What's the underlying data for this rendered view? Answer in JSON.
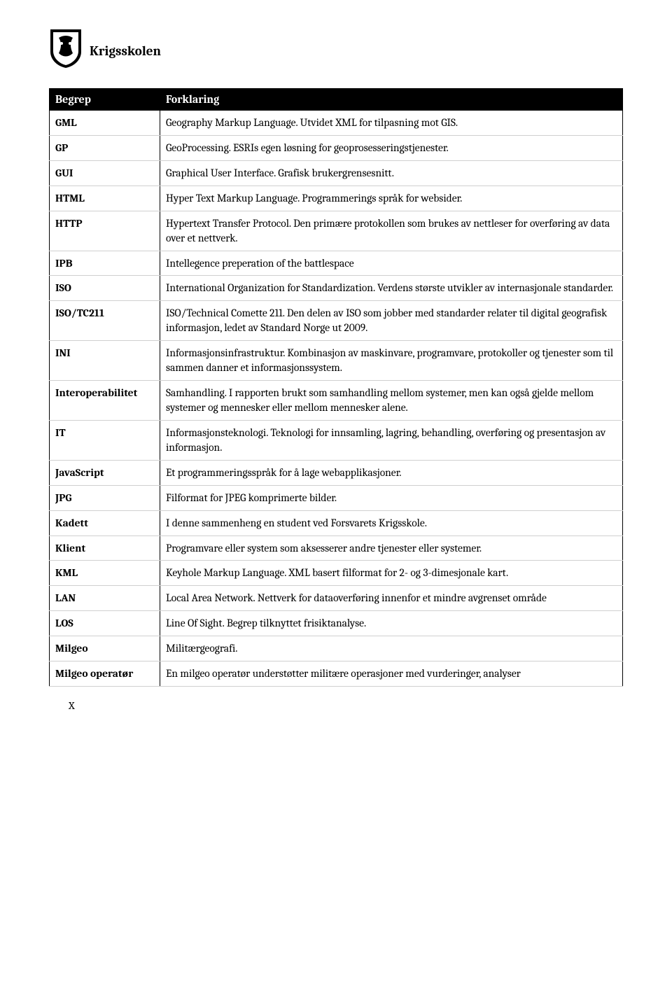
{
  "brand": "Krigsskolen",
  "table": {
    "headers": [
      "Begrep",
      "Forklaring"
    ],
    "rows": [
      {
        "term": "GML",
        "desc": "Geography Markup Language. Utvidet XML for tilpasning mot GIS."
      },
      {
        "term": "GP",
        "desc": "GeoProcessing. ESRIs egen løsning for geoprosesseringstjenester."
      },
      {
        "term": "GUI",
        "desc": "Graphical User Interface. Grafisk brukergrensesnitt."
      },
      {
        "term": "HTML",
        "desc": "Hyper Text Markup Language. Programmerings språk for websider."
      },
      {
        "term": "HTTP",
        "desc": "Hypertext Transfer Protocol. Den primære protokollen som brukes av nettleser for overføring av data over et nettverk."
      },
      {
        "term": "IPB",
        "desc": "Intellegence preperation of the battlespace"
      },
      {
        "term": "ISO",
        "desc": "International Organization for Standardization. Verdens største utvikler av internasjonale standarder."
      },
      {
        "term": "ISO/TC211",
        "desc": "ISO/Technical Comette 211. Den delen av ISO som jobber med standarder relater til digital geografisk informasjon, ledet av Standard Norge ut 2009."
      },
      {
        "term": "INI",
        "desc": "Informasjonsinfrastruktur. Kombinasjon av maskinvare, programvare, protokoller og tjenester som til sammen danner et informasjonssystem."
      },
      {
        "term": "Interoperabilitet",
        "desc": "Samhandling. I rapporten brukt som samhandling mellom systemer, men kan også gjelde mellom systemer og mennesker eller mellom mennesker alene."
      },
      {
        "term": "IT",
        "desc": "Informasjonsteknologi. Teknologi for innsamling, lagring, behandling, overføring og presentasjon av informasjon."
      },
      {
        "term": "JavaScript",
        "desc": "Et programmeringsspråk for å lage webapplikasjoner."
      },
      {
        "term": "JPG",
        "desc": "Filformat for JPEG komprimerte bilder."
      },
      {
        "term": "Kadett",
        "desc": "I denne sammenheng en student ved Forsvarets Krigsskole."
      },
      {
        "term": "Klient",
        "desc": "Programvare eller system som aksesserer andre tjenester eller systemer."
      },
      {
        "term": "KML",
        "desc": "Keyhole Markup Language. XML basert filformat for 2- og 3-dimesjonale kart."
      },
      {
        "term": "LAN",
        "desc": "Local Area Network. Nettverk for dataoverføring innenfor et mindre avgrenset område"
      },
      {
        "term": "LOS",
        "desc": "Line Of Sight. Begrep tilknyttet frisiktanalyse."
      },
      {
        "term": "Milgeo",
        "desc": "Militærgeografi."
      },
      {
        "term": "Milgeo operatør",
        "desc": "En milgeo operatør understøtter militære operasjoner med vurderinger, analyser"
      }
    ]
  },
  "page_number": "X",
  "colors": {
    "header_bg": "#000000",
    "header_fg": "#ffffff",
    "row_border": "#d0d0d0",
    "outer_border": "#000000",
    "text": "#000000",
    "page_bg": "#ffffff"
  }
}
